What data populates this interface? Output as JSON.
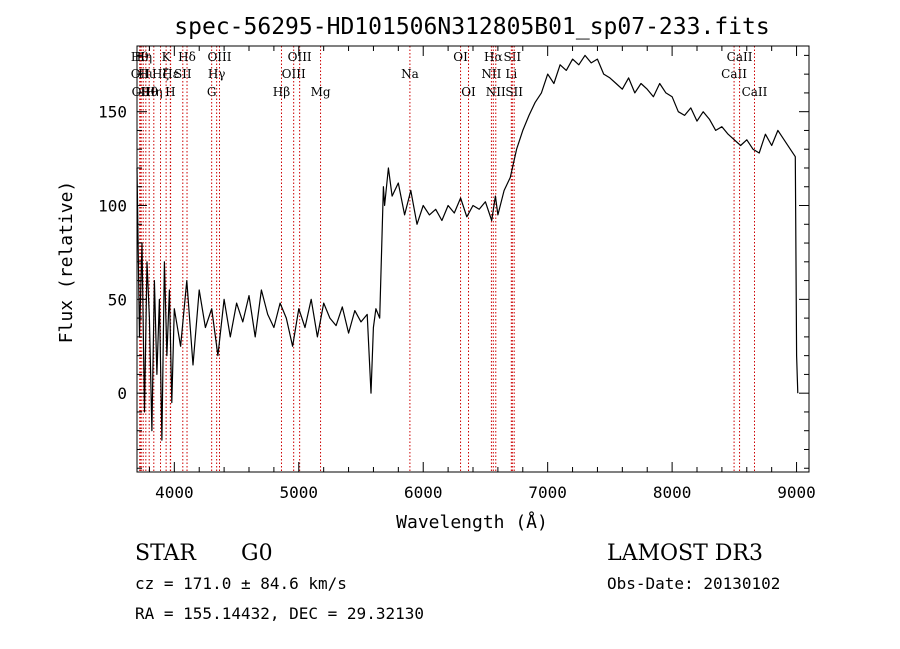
{
  "chart_data": {
    "type": "line",
    "title": "spec-56295-HD101506N312805B01_sp07-233.fits",
    "xlabel": "Wavelength (Å)",
    "ylabel": "Flux (relative)",
    "xlim": [
      3700,
      9100
    ],
    "ylim": [
      -42,
      185
    ],
    "x_ticks": [
      4000,
      5000,
      6000,
      7000,
      8000,
      9000
    ],
    "y_ticks": [
      0,
      50,
      100,
      150
    ],
    "grid": false,
    "series": [
      {
        "x": [
          3700,
          3720,
          3740,
          3760,
          3780,
          3800,
          3820,
          3840,
          3860,
          3880,
          3900,
          3920,
          3940,
          3960,
          3980,
          4000,
          4050,
          4100,
          4150,
          4200,
          4250,
          4300,
          4350,
          4400,
          4450,
          4500,
          4550,
          4600,
          4650,
          4700,
          4750,
          4800,
          4850,
          4900,
          4950,
          5000,
          5050,
          5100,
          5150,
          5200,
          5250,
          5300,
          5350,
          5400,
          5450,
          5500,
          5550,
          5580,
          5600,
          5620,
          5650,
          5680,
          5690,
          5720,
          5750,
          5800,
          5850,
          5900,
          5950,
          6000,
          6050,
          6100,
          6150,
          6200,
          6250,
          6300,
          6350,
          6400,
          6450,
          6500,
          6550,
          6580,
          6600,
          6650,
          6700,
          6750,
          6800,
          6850,
          6900,
          6950,
          7000,
          7050,
          7100,
          7150,
          7200,
          7250,
          7300,
          7350,
          7400,
          7450,
          7500,
          7550,
          7600,
          7650,
          7700,
          7750,
          7800,
          7850,
          7900,
          7950,
          8000,
          8050,
          8100,
          8150,
          8200,
          8250,
          8300,
          8350,
          8400,
          8450,
          8500,
          8550,
          8600,
          8650,
          8700,
          8750,
          8800,
          8850,
          8900,
          8950,
          8990,
          9000,
          9010
        ],
        "y": [
          120,
          30,
          80,
          -10,
          70,
          40,
          -20,
          60,
          10,
          50,
          -25,
          70,
          20,
          55,
          -5,
          45,
          25,
          60,
          15,
          55,
          35,
          45,
          20,
          50,
          30,
          48,
          38,
          52,
          30,
          55,
          42,
          35,
          48,
          40,
          25,
          45,
          35,
          50,
          30,
          48,
          40,
          36,
          46,
          32,
          44,
          38,
          42,
          0,
          35,
          45,
          40,
          110,
          100,
          120,
          105,
          112,
          95,
          108,
          90,
          100,
          95,
          98,
          92,
          100,
          96,
          104,
          94,
          100,
          98,
          102,
          92,
          105,
          95,
          108,
          115,
          130,
          140,
          148,
          155,
          160,
          170,
          165,
          175,
          172,
          178,
          175,
          180,
          176,
          178,
          170,
          168,
          165,
          162,
          168,
          160,
          165,
          162,
          158,
          165,
          160,
          158,
          150,
          148,
          152,
          145,
          150,
          146,
          140,
          142,
          138,
          135,
          132,
          135,
          130,
          128,
          138,
          132,
          140,
          135,
          130,
          126,
          20,
          0
        ]
      }
    ],
    "line_labels": [
      {
        "x": 3722,
        "label": "Hθ",
        "row": 1
      },
      {
        "x": 3727,
        "label": "OII",
        "row": 2
      },
      {
        "x": 3734,
        "label": "OII",
        "row": 3
      },
      {
        "x": 3750,
        "label": "Hη",
        "row": 1
      },
      {
        "x": 3771,
        "label": "Hι",
        "row": 2
      },
      {
        "x": 3798,
        "label": "Hθ",
        "row": 3
      },
      {
        "x": 3835,
        "label": "Hη",
        "row": 3
      },
      {
        "x": 3889,
        "label": "Hζ",
        "row": 2
      },
      {
        "x": 3934,
        "label": "K",
        "row": 1
      },
      {
        "x": 3968,
        "label": "H",
        "row": 3
      },
      {
        "x": 3970,
        "label": "Hε",
        "row": 2
      },
      {
        "x": 4068,
        "label": "SII",
        "row": 2
      },
      {
        "x": 4102,
        "label": "Hδ",
        "row": 1
      },
      {
        "x": 4300,
        "label": "G",
        "row": 3
      },
      {
        "x": 4340,
        "label": "Hγ",
        "row": 2
      },
      {
        "x": 4363,
        "label": "OIII",
        "row": 1
      },
      {
        "x": 4861,
        "label": "Hβ",
        "row": 3
      },
      {
        "x": 4959,
        "label": "OIII",
        "row": 2
      },
      {
        "x": 5007,
        "label": "OIII",
        "row": 1
      },
      {
        "x": 5175,
        "label": "Mg",
        "row": 3
      },
      {
        "x": 5893,
        "label": "Na",
        "row": 2
      },
      {
        "x": 6300,
        "label": "OI",
        "row": 1
      },
      {
        "x": 6364,
        "label": "OI",
        "row": 3
      },
      {
        "x": 6548,
        "label": "NII",
        "row": 2
      },
      {
        "x": 6563,
        "label": "Hα",
        "row": 1
      },
      {
        "x": 6583,
        "label": "NII",
        "row": 3
      },
      {
        "x": 6708,
        "label": "Li",
        "row": 2
      },
      {
        "x": 6716,
        "label": "SII",
        "row": 1
      },
      {
        "x": 6731,
        "label": "SII",
        "row": 3
      },
      {
        "x": 8498,
        "label": "CaII",
        "row": 2
      },
      {
        "x": 8542,
        "label": "CaII",
        "row": 1
      },
      {
        "x": 8662,
        "label": "CaII",
        "row": 3
      }
    ]
  },
  "info": {
    "class": "STAR",
    "subclass": "G0",
    "survey": "LAMOST DR3",
    "cz": "cz = 171.0 ± 84.6 km/s",
    "obs_date": "Obs-Date: 20130102",
    "coords": "RA = 155.14432, DEC =  29.32130"
  },
  "colors": {
    "line": "#000000",
    "marker": "#cc0000"
  }
}
